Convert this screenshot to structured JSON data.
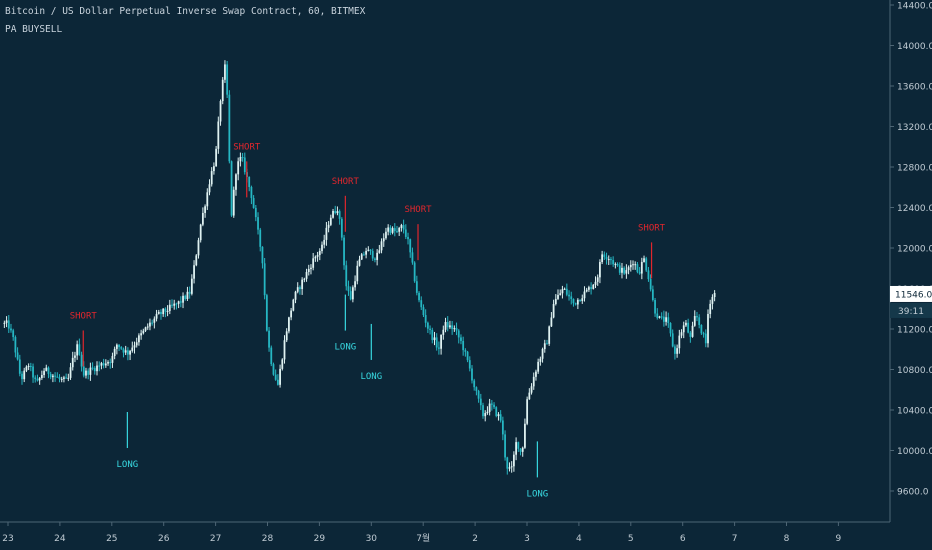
{
  "chart_title": "Bitcoin / US Dollar Perpetual Inverse Swap Contract, 60, BITMEX",
  "indicator": "PA BUYSELL",
  "price_tag": "11546.0",
  "countdown": "39:11",
  "colors": {
    "background": "#0c2637",
    "candle_up": "#dff2f2",
    "candle_down": "#26b7c3",
    "short_signal": "#e0262d",
    "long_signal": "#38d8e0",
    "axis_text": "#c0cbd3",
    "axis_line": "#4d6574",
    "price_tag_bg": "#ffffff",
    "price_tag_text": "#0c2637"
  },
  "chart_data": {
    "type": "candlestick",
    "y_axis": {
      "side": "right",
      "ticks": [
        "14400.0",
        "14000.0",
        "13600.0",
        "13200.0",
        "12800.0",
        "12400.0",
        "12000.0",
        "11600.0",
        "11200.0",
        "10800.0",
        "10400.0",
        "10000.0",
        "9600.0"
      ],
      "range": [
        9200,
        14400
      ]
    },
    "x_axis": {
      "ticks": [
        "23",
        "24",
        "25",
        "26",
        "27",
        "28",
        "29",
        "30",
        "7월",
        "2",
        "3",
        "4",
        "5",
        "6",
        "7",
        "8",
        "9"
      ]
    },
    "price_path": [
      [
        "23",
        11250
      ],
      [
        "23.1",
        11100
      ],
      [
        "23.25",
        10700
      ],
      [
        "23.4",
        10850
      ],
      [
        "23.55",
        10650
      ],
      [
        "23.7",
        10800
      ],
      [
        "23.85",
        10750
      ],
      [
        "24",
        10700
      ],
      [
        "24.15",
        10680
      ],
      [
        "24.25",
        10900
      ],
      [
        "24.35",
        11050
      ],
      [
        "24.45",
        10750
      ],
      [
        "24.6",
        10800
      ],
      [
        "24.8",
        10850
      ],
      [
        "25",
        10900
      ],
      [
        "25.1",
        11050
      ],
      [
        "25.3",
        10960
      ],
      [
        "25.5",
        11100
      ],
      [
        "25.7",
        11230
      ],
      [
        "25.9",
        11340
      ],
      [
        "26.1",
        11400
      ],
      [
        "26.3",
        11460
      ],
      [
        "26.5",
        11560
      ],
      [
        "26.6",
        11850
      ],
      [
        "26.7",
        12200
      ],
      [
        "26.8",
        12450
      ],
      [
        "26.9",
        12700
      ],
      [
        "27.0",
        12900
      ],
      [
        "27.1",
        13500
      ],
      [
        "27.2",
        13850
      ],
      [
        "27.3",
        12300
      ],
      [
        "27.4",
        12800
      ],
      [
        "27.5",
        12900
      ],
      [
        "27.6",
        12700
      ],
      [
        "27.7",
        12500
      ],
      [
        "27.8",
        12200
      ],
      [
        "27.9",
        11900
      ],
      [
        "28.0",
        11100
      ],
      [
        "28.1",
        10800
      ],
      [
        "28.2",
        10650
      ],
      [
        "28.35",
        11150
      ],
      [
        "28.5",
        11500
      ],
      [
        "28.7",
        11700
      ],
      [
        "28.9",
        11900
      ],
      [
        "29.05",
        12000
      ],
      [
        "29.2",
        12300
      ],
      [
        "29.35",
        12400
      ],
      [
        "29.45",
        12050
      ],
      [
        "29.5",
        11650
      ],
      [
        "29.6",
        11500
      ],
      [
        "29.75",
        11850
      ],
      [
        "29.9",
        11980
      ],
      [
        "30.1",
        11900
      ],
      [
        "30.3",
        12200
      ],
      [
        "30.5",
        12150
      ],
      [
        "30.6",
        12220
      ],
      [
        "30.7",
        12080
      ],
      [
        "30.8",
        11800
      ],
      [
        "30.9",
        11500
      ],
      [
        "31.1",
        11200
      ],
      [
        "31.3",
        11000
      ],
      [
        "31.4",
        11250
      ],
      [
        "31.6",
        11200
      ],
      [
        "31.75",
        11050
      ],
      [
        "31.9",
        10800
      ],
      [
        "32.0",
        10600
      ],
      [
        "32.15",
        10350
      ],
      [
        "32.3",
        10450
      ],
      [
        "32.5",
        10300
      ],
      [
        "32.6",
        9850
      ],
      [
        "32.7",
        9800
      ],
      [
        "32.8",
        10100
      ],
      [
        "32.9",
        9950
      ],
      [
        "33.0",
        10500
      ],
      [
        "33.2",
        10850
      ],
      [
        "33.4",
        11100
      ],
      [
        "33.5",
        11450
      ],
      [
        "33.7",
        11600
      ],
      [
        "33.9",
        11450
      ],
      [
        "34.0",
        11500
      ],
      [
        "34.2",
        11600
      ],
      [
        "34.35",
        11700
      ],
      [
        "34.45",
        11950
      ],
      [
        "34.6",
        11900
      ],
      [
        "34.75",
        11800
      ],
      [
        "34.9",
        11750
      ],
      [
        "35.05",
        11880
      ],
      [
        "35.15",
        11750
      ],
      [
        "35.25",
        11900
      ],
      [
        "35.35",
        11700
      ],
      [
        "35.45",
        11400
      ],
      [
        "35.55",
        11300
      ],
      [
        "35.7",
        11280
      ],
      [
        "35.85",
        10950
      ],
      [
        "35.95",
        11150
      ],
      [
        "36.05",
        11260
      ],
      [
        "36.15",
        11100
      ],
      [
        "36.25",
        11350
      ],
      [
        "36.35",
        11200
      ],
      [
        "36.45",
        11050
      ],
      [
        "36.5",
        11450
      ],
      [
        "36.6",
        11546
      ]
    ],
    "signals": [
      {
        "type": "SHORT",
        "date": "24.45",
        "price": 10830
      },
      {
        "type": "LONG",
        "date": "25.3",
        "price": 10380
      },
      {
        "type": "SHORT",
        "date": "27.6",
        "price": 12500
      },
      {
        "type": "SHORT",
        "date": "29.5",
        "price": 12160
      },
      {
        "type": "LONG",
        "date": "29.5",
        "price": 11540
      },
      {
        "type": "LONG",
        "date": "30.0",
        "price": 11250
      },
      {
        "type": "SHORT",
        "date": "30.9",
        "price": 11880
      },
      {
        "type": "LONG",
        "date": "33.2",
        "price": 10090
      },
      {
        "type": "SHORT",
        "date": "35.4",
        "price": 11700
      }
    ]
  }
}
